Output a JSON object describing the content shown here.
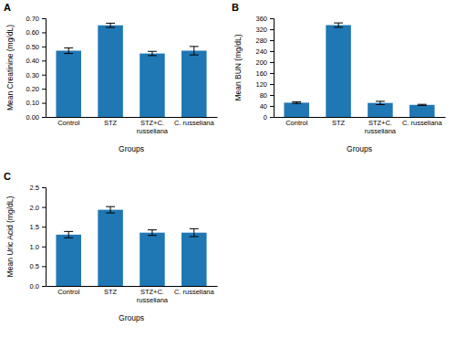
{
  "chart_data": [
    {
      "type": "bar",
      "title": "A",
      "ylabel": "Mean Creatinine (mg/dL)",
      "xlabel": "Groups",
      "categories": [
        "Control",
        "STZ",
        "STZ+C.\nrusseliana",
        "C. russeliana"
      ],
      "values": [
        0.47,
        0.65,
        0.45,
        0.47
      ],
      "errors": [
        0.02,
        0.015,
        0.015,
        0.03
      ],
      "ylim": [
        0,
        0.7
      ],
      "yticks": [
        {
          "value": 0,
          "label": "0.00"
        },
        {
          "value": 0.1,
          "label": "0.10"
        },
        {
          "value": 0.2,
          "label": "0.20"
        },
        {
          "value": 0.3,
          "label": "0.30"
        },
        {
          "value": 0.4,
          "label": "0.40"
        },
        {
          "value": 0.5,
          "label": "0.50"
        },
        {
          "value": 0.6,
          "label": "0.60"
        },
        {
          "value": 0.7,
          "label": "0.70"
        }
      ],
      "grid": false
    },
    {
      "type": "bar",
      "title": "B",
      "ylabel": "Mean BUN (mg/dL)",
      "xlabel": "Groups",
      "categories": [
        "Control",
        "STZ",
        "STZ+C.\nrusseliana",
        "C. russeliana"
      ],
      "values": [
        52,
        335,
        51,
        44
      ],
      "errors": [
        3,
        8,
        6,
        2
      ],
      "ylim": [
        0,
        360
      ],
      "yticks": [
        0,
        40,
        80,
        120,
        160,
        200,
        240,
        280,
        320,
        360
      ],
      "grid": false
    },
    {
      "type": "bar",
      "title": "C",
      "ylabel": "Mean Uric Acid (mg/dL)",
      "xlabel": "Groups",
      "categories": [
        "Control",
        "STZ",
        "STZ+C.\nrusseliana",
        "C. russeliana"
      ],
      "values": [
        1.3,
        1.93,
        1.35,
        1.35
      ],
      "errors": [
        0.08,
        0.08,
        0.07,
        0.1
      ],
      "ylim": [
        0,
        2.5
      ],
      "yticks": [
        {
          "value": 0,
          "label": "0.0"
        },
        0.5,
        {
          "value": 1,
          "label": "1.0"
        },
        1.5,
        {
          "value": 2,
          "label": "2.0"
        },
        2.5
      ],
      "grid": false
    }
  ]
}
